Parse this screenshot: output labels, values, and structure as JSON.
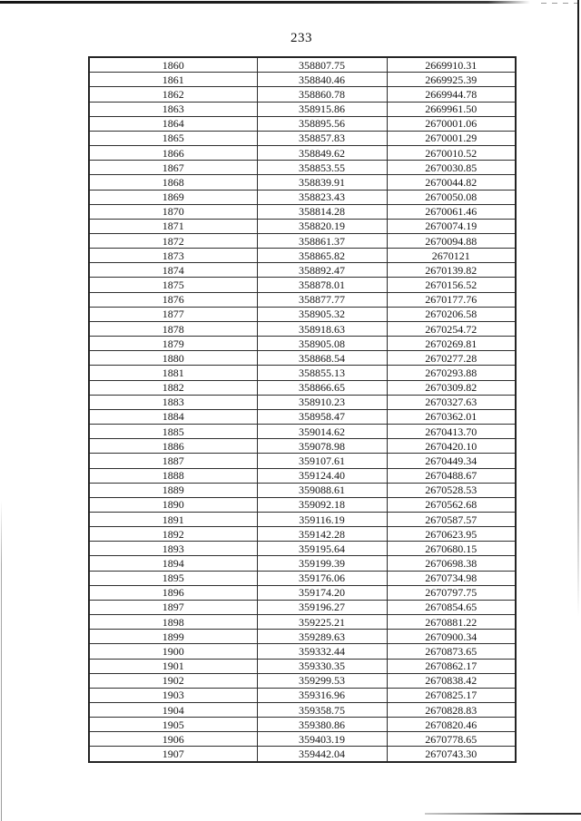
{
  "page": {
    "number": "233"
  },
  "colors": {
    "ink": "#141414",
    "table_border": "#242424",
    "scan_edge_dark": "#1c1c1c",
    "scan_edge_light": "#a8a8a8",
    "paper": "#ffffff"
  },
  "table": {
    "column_count": 3,
    "rows": [
      [
        "1860",
        "358807.75",
        "2669910.31"
      ],
      [
        "1861",
        "358840.46",
        "2669925.39"
      ],
      [
        "1862",
        "358860.78",
        "2669944.78"
      ],
      [
        "1863",
        "358915.86",
        "2669961.50"
      ],
      [
        "1864",
        "358895.56",
        "2670001.06"
      ],
      [
        "1865",
        "358857.83",
        "2670001.29"
      ],
      [
        "1866",
        "358849.62",
        "2670010.52"
      ],
      [
        "1867",
        "358853.55",
        "2670030.85"
      ],
      [
        "1868",
        "358839.91",
        "2670044.82"
      ],
      [
        "1869",
        "358823.43",
        "2670050.08"
      ],
      [
        "1870",
        "358814.28",
        "2670061.46"
      ],
      [
        "1871",
        "358820.19",
        "2670074.19"
      ],
      [
        "1872",
        "358861.37",
        "2670094.88"
      ],
      [
        "1873",
        "358865.82",
        "2670121"
      ],
      [
        "1874",
        "358892.47",
        "2670139.82"
      ],
      [
        "1875",
        "358878.01",
        "2670156.52"
      ],
      [
        "1876",
        "358877.77",
        "2670177.76"
      ],
      [
        "1877",
        "358905.32",
        "2670206.58"
      ],
      [
        "1878",
        "358918.63",
        "2670254.72"
      ],
      [
        "1879",
        "358905.08",
        "2670269.81"
      ],
      [
        "1880",
        "358868.54",
        "2670277.28"
      ],
      [
        "1881",
        "358855.13",
        "2670293.88"
      ],
      [
        "1882",
        "358866.65",
        "2670309.82"
      ],
      [
        "1883",
        "358910.23",
        "2670327.63"
      ],
      [
        "1884",
        "358958.47",
        "2670362.01"
      ],
      [
        "1885",
        "359014.62",
        "2670413.70"
      ],
      [
        "1886",
        "359078.98",
        "2670420.10"
      ],
      [
        "1887",
        "359107.61",
        "2670449.34"
      ],
      [
        "1888",
        "359124.40",
        "2670488.67"
      ],
      [
        "1889",
        "359088.61",
        "2670528.53"
      ],
      [
        "1890",
        "359092.18",
        "2670562.68"
      ],
      [
        "1891",
        "359116.19",
        "2670587.57"
      ],
      [
        "1892",
        "359142.28",
        "2670623.95"
      ],
      [
        "1893",
        "359195.64",
        "2670680.15"
      ],
      [
        "1894",
        "359199.39",
        "2670698.38"
      ],
      [
        "1895",
        "359176.06",
        "2670734.98"
      ],
      [
        "1896",
        "359174.20",
        "2670797.75"
      ],
      [
        "1897",
        "359196.27",
        "2670854.65"
      ],
      [
        "1898",
        "359225.21",
        "2670881.22"
      ],
      [
        "1899",
        "359289.63",
        "2670900.34"
      ],
      [
        "1900",
        "359332.44",
        "2670873.65"
      ],
      [
        "1901",
        "359330.35",
        "2670862.17"
      ],
      [
        "1902",
        "359299.53",
        "2670838.42"
      ],
      [
        "1903",
        "359316.96",
        "2670825.17"
      ],
      [
        "1904",
        "359358.75",
        "2670828.83"
      ],
      [
        "1905",
        "359380.86",
        "2670820.46"
      ],
      [
        "1906",
        "359403.19",
        "2670778.65"
      ],
      [
        "1907",
        "359442.04",
        "2670743.30"
      ]
    ]
  }
}
